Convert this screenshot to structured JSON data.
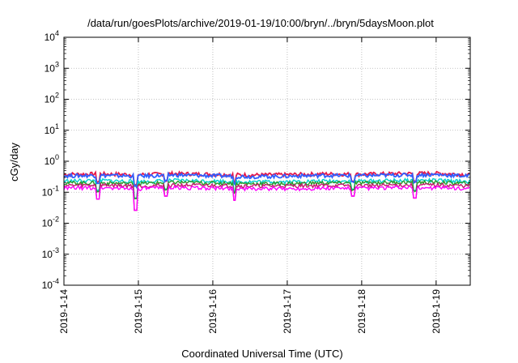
{
  "chart_data": {
    "type": "line",
    "title": "/data/run/goesPlots/archive/2019-01-19/10:00/bryn/../bryn/5daysMoon.plot",
    "xlabel": "Coordinated Universal Time (UTC)",
    "ylabel": "cGy/day",
    "y_scale": "log",
    "ylim": [
      0.0001,
      10000
    ],
    "y_ticks": [
      {
        "base": "10",
        "exp": "4",
        "value": 10000
      },
      {
        "base": "10",
        "exp": "3",
        "value": 1000
      },
      {
        "base": "10",
        "exp": "2",
        "value": 100
      },
      {
        "base": "10",
        "exp": "1",
        "value": 10
      },
      {
        "base": "10",
        "exp": "0",
        "value": 1
      },
      {
        "base": "10",
        "exp": "-1",
        "value": 0.1
      },
      {
        "base": "10",
        "exp": "-2",
        "value": 0.01
      },
      {
        "base": "10",
        "exp": "-3",
        "value": 0.001
      },
      {
        "base": "10",
        "exp": "-4",
        "value": 0.0001
      }
    ],
    "x_ticks": [
      "2019-1-14",
      "2019-1-15",
      "2019-1-16",
      "2019-1-17",
      "2019-1-18",
      "2019-1-19"
    ],
    "xlim": [
      "2019-01-14T00:00",
      "2019-01-19T11:00"
    ],
    "grid": true,
    "x": [
      "2019-01-14T00:00",
      "2019-01-14T12:00",
      "2019-01-15T00:00",
      "2019-01-15T12:00",
      "2019-01-16T00:00",
      "2019-01-16T12:00",
      "2019-01-17T00:00",
      "2019-01-17T12:00",
      "2019-01-18T00:00",
      "2019-01-18T12:00",
      "2019-01-19T00:00",
      "2019-01-19T11:00"
    ],
    "series": [
      {
        "color": "#e6194b",
        "values": [
          0.38,
          0.39,
          0.37,
          0.4,
          0.38,
          0.36,
          0.37,
          0.39,
          0.38,
          0.4,
          0.41,
          0.37
        ]
      },
      {
        "color": "#3060ff",
        "values": [
          0.34,
          0.35,
          0.33,
          0.36,
          0.34,
          0.32,
          0.33,
          0.35,
          0.34,
          0.36,
          0.37,
          0.33
        ]
      },
      {
        "color": "#00d0d0",
        "values": [
          0.23,
          0.24,
          0.22,
          0.24,
          0.23,
          0.22,
          0.22,
          0.23,
          0.23,
          0.24,
          0.24,
          0.22
        ]
      },
      {
        "color": "#2a9a2a",
        "values": [
          0.2,
          0.2,
          0.19,
          0.21,
          0.2,
          0.19,
          0.19,
          0.2,
          0.2,
          0.21,
          0.21,
          0.19
        ]
      },
      {
        "color": "#c41a6e",
        "values": [
          0.165,
          0.17,
          0.16,
          0.17,
          0.165,
          0.16,
          0.16,
          0.165,
          0.165,
          0.17,
          0.17,
          0.16
        ]
      },
      {
        "color": "#ff00ff",
        "values": [
          0.135,
          0.14,
          0.13,
          0.14,
          0.135,
          0.13,
          0.13,
          0.135,
          0.135,
          0.14,
          0.14,
          0.13
        ]
      }
    ],
    "dips": [
      {
        "x": "2019-01-14T11:00",
        "value": 0.06
      },
      {
        "x": "2019-01-14T23:00",
        "value": 0.026
      },
      {
        "x": "2019-01-15T09:00",
        "value": 0.075
      },
      {
        "x": "2019-01-16T07:00",
        "value": 0.055
      },
      {
        "x": "2019-01-17T21:00",
        "value": 0.075
      },
      {
        "x": "2019-01-18T17:00",
        "value": 0.065
      }
    ]
  }
}
